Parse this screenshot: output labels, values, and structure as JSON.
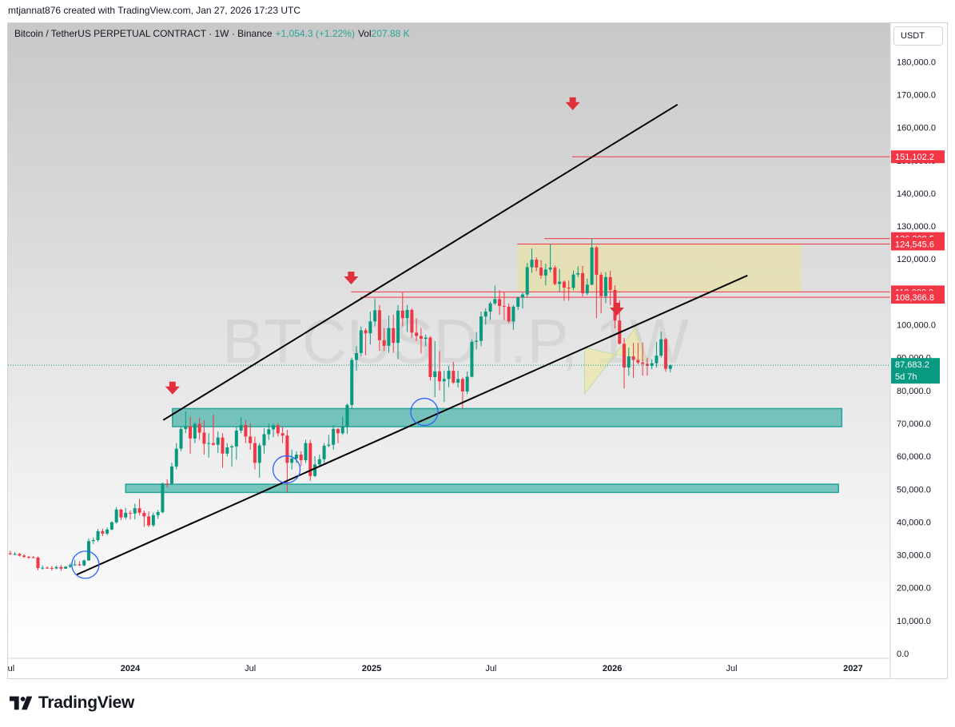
{
  "header": {
    "attribution": "mtjannat876 created with TradingView.com, Jan 27, 2026 17:23 UTC"
  },
  "legend": {
    "symbol": "Bitcoin / TetherUS PERPETUAL CONTRACT · 1W · Binance",
    "change": "+1,054.3 (+1.22%)",
    "vol_label": "Vol",
    "vol_value": "207.88 K"
  },
  "currency": "USDT",
  "watermark": "BTCUSDT.P, 1W",
  "footer": {
    "brand": "TradingView"
  },
  "colors": {
    "up": "#089981",
    "down": "#f23645",
    "zone_green": "#26a69a",
    "zone_yellow": "#e8e0a0",
    "level_red": "#f23645",
    "trend_black": "#000000",
    "arrow_red": "#e0303a",
    "circle_blue": "#2962ff",
    "current_price": "#089981"
  },
  "chart_data": {
    "type": "candlestick",
    "title": "Bitcoin / TetherUS PERPETUAL CONTRACT · 1W · Binance",
    "x_tick_labels": [
      "Jul",
      "2024",
      "Jul",
      "2025",
      "Jul",
      "2026",
      "Jul",
      "2027"
    ],
    "x_ticks": [
      "2023-07-01",
      "2024-01-01",
      "2024-07-01",
      "2025-01-01",
      "2025-07-01",
      "2026-01-01",
      "2026-07-01",
      "2027-01-01"
    ],
    "y_axis": {
      "min": 0,
      "max": 180000,
      "step": 10000,
      "tick_labels": [
        "0.0",
        "10,000.0",
        "20,000.0",
        "30,000.0",
        "40,000.0",
        "50,000.0",
        "60,000.0",
        "70,000.0",
        "80,000.0",
        "90,000.0",
        "100,000.0",
        "110,000.0",
        "120,000.0",
        "130,000.0",
        "140,000.0",
        "150,000.0",
        "160,000.0",
        "170,000.0",
        "180,000.0"
      ]
    },
    "current_price": {
      "value": 87683.2,
      "label": "87,683.2",
      "countdown": "5d 7h"
    },
    "price_labels": [
      {
        "value": 151102.2,
        "label": "151,102.2"
      },
      {
        "value": 126208.5,
        "label": "126,208.5"
      },
      {
        "value": 124545.6,
        "label": "124,545.6"
      },
      {
        "value": 110000.0,
        "label": "110,000.0"
      },
      {
        "value": 108366.8,
        "label": "108,366.8"
      }
    ],
    "horizontal_levels": [
      {
        "value": 151102.2,
        "start": "2025-11-01"
      },
      {
        "value": 126208.5,
        "start": "2025-09-20"
      },
      {
        "value": 124545.6,
        "start": "2025-08-10"
      },
      {
        "value": 110000.0,
        "start": "2024-12-01"
      },
      {
        "value": 108366.8,
        "start": "2024-12-15"
      }
    ],
    "zones": [
      {
        "kind": "support",
        "from": 69000,
        "to": 74500,
        "start": "2024-03-05",
        "end": "2026-12-15"
      },
      {
        "kind": "support",
        "from": 49000,
        "to": 51500,
        "start": "2023-12-25",
        "end": "2026-12-10"
      },
      {
        "kind": "resistance",
        "from": 110000,
        "to": 124500,
        "start": "2025-08-10",
        "end": "2026-10-15"
      }
    ],
    "wedge": {
      "points": [
        [
          "2025-11-20",
          79000
        ],
        [
          "2026-02-05",
          99000
        ],
        [
          "2026-02-22",
          89000
        ],
        [
          "2025-11-20",
          93000
        ]
      ]
    },
    "trendlines": [
      {
        "from": [
          "2024-02-20",
          71000
        ],
        "to": [
          "2026-04-10",
          167000
        ]
      },
      {
        "from": [
          "2023-10-12",
          24000
        ],
        "to": [
          "2026-07-25",
          115000
        ]
      }
    ],
    "arrows": [
      {
        "date": "2024-03-05",
        "value": 80000
      },
      {
        "date": "2024-12-01",
        "value": 113500
      },
      {
        "date": "2025-11-02",
        "value": 166500
      },
      {
        "date": "2026-01-08",
        "value": 104000
      }
    ],
    "circles": [
      {
        "date": "2023-10-25",
        "value": 27000
      },
      {
        "date": "2024-08-25",
        "value": 56000
      },
      {
        "date": "2025-03-22",
        "value": 73500
      }
    ],
    "candles": {
      "start_date": "2023-06-26",
      "ohlc": [
        [
          30200,
          31000,
          29800,
          30500
        ],
        [
          30500,
          31300,
          30000,
          30200
        ],
        [
          30200,
          30800,
          29900,
          30300
        ],
        [
          30300,
          30600,
          29500,
          29800
        ],
        [
          29800,
          30200,
          29000,
          29400
        ],
        [
          29400,
          29700,
          28800,
          29300
        ],
        [
          29300,
          29600,
          29000,
          29200
        ],
        [
          29200,
          29500,
          25300,
          26000
        ],
        [
          26000,
          26800,
          25500,
          26100
        ],
        [
          26100,
          26500,
          25800,
          26000
        ],
        [
          26000,
          26600,
          25200,
          25900
        ],
        [
          25900,
          26700,
          25600,
          26300
        ],
        [
          26300,
          26900,
          25100,
          25800
        ],
        [
          25800,
          26600,
          25700,
          26400
        ],
        [
          26400,
          27500,
          26000,
          26900
        ],
        [
          26900,
          28500,
          26600,
          27100
        ],
        [
          27100,
          28000,
          26700,
          26800
        ],
        [
          26800,
          28600,
          26500,
          28300
        ],
        [
          28300,
          35000,
          28200,
          34200
        ],
        [
          34200,
          35300,
          33300,
          34500
        ],
        [
          34500,
          37900,
          34000,
          37200
        ],
        [
          37200,
          38000,
          35700,
          36500
        ],
        [
          36500,
          38300,
          36000,
          37700
        ],
        [
          37700,
          40200,
          37500,
          39900
        ],
        [
          39900,
          44500,
          39500,
          43800
        ],
        [
          43800,
          44000,
          40500,
          41400
        ],
        [
          41400,
          44300,
          40800,
          42800
        ],
        [
          42800,
          43500,
          40800,
          42600
        ],
        [
          42600,
          45600,
          40800,
          44200
        ],
        [
          44200,
          47000,
          42000,
          42800
        ],
        [
          42800,
          43500,
          38500,
          41700
        ],
        [
          41700,
          43200,
          38500,
          39000
        ],
        [
          39000,
          42900,
          38500,
          42100
        ],
        [
          42100,
          43700,
          41000,
          43000
        ],
        [
          43000,
          52000,
          42600,
          51700
        ],
        [
          51700,
          53000,
          50500,
          51500
        ],
        [
          51700,
          58000,
          51300,
          56900
        ],
        [
          56900,
          64000,
          56000,
          62300
        ],
        [
          62300,
          69000,
          61500,
          68300
        ],
        [
          68300,
          73700,
          67000,
          69100
        ],
        [
          69100,
          72000,
          60800,
          65400
        ],
        [
          65400,
          70300,
          64000,
          69800
        ],
        [
          69800,
          71700,
          65000,
          67200
        ],
        [
          67200,
          71000,
          60500,
          63800
        ],
        [
          63800,
          67000,
          59600,
          64000
        ],
        [
          64000,
          72700,
          63200,
          63500
        ],
        [
          63500,
          67500,
          61000,
          65700
        ],
        [
          65700,
          67000,
          56500,
          60800
        ],
        [
          60800,
          64000,
          60000,
          62700
        ],
        [
          62700,
          63500,
          56800,
          63000
        ],
        [
          63000,
          69000,
          59000,
          67800
        ],
        [
          67800,
          71900,
          67000,
          69500
        ],
        [
          69500,
          71000,
          64000,
          66000
        ],
        [
          66000,
          70000,
          62000,
          64000
        ],
        [
          64000,
          66000,
          56000,
          58000
        ],
        [
          58000,
          64000,
          53500,
          63300
        ],
        [
          63300,
          68500,
          60800,
          66700
        ],
        [
          66700,
          70000,
          65000,
          68200
        ],
        [
          68200,
          70000,
          65800,
          69400
        ],
        [
          69400,
          70000,
          66000,
          67000
        ],
        [
          67000,
          69000,
          64000,
          66300
        ],
        [
          66300,
          68000,
          49000,
          58000
        ],
        [
          58000,
          62000,
          56000,
          59300
        ],
        [
          59300,
          61500,
          58000,
          60500
        ],
        [
          60500,
          61500,
          57000,
          58800
        ],
        [
          58800,
          65000,
          58000,
          64000
        ],
        [
          64000,
          65000,
          52500,
          54000
        ],
        [
          54000,
          60000,
          53700,
          57500
        ],
        [
          57500,
          60500,
          57000,
          59100
        ],
        [
          59100,
          64000,
          58000,
          63200
        ],
        [
          63200,
          66500,
          62700,
          63500
        ],
        [
          63500,
          69500,
          62000,
          68300
        ],
        [
          68300,
          68500,
          64000,
          67000
        ],
        [
          67000,
          72000,
          66500,
          69000
        ],
        [
          69000,
          76000,
          66800,
          75600
        ],
        [
          75600,
          90000,
          74500,
          89300
        ],
        [
          89300,
          93500,
          86000,
          91400
        ],
        [
          91400,
          99500,
          90500,
          98300
        ],
        [
          98300,
          98900,
          90700,
          97400
        ],
        [
          97400,
          104000,
          94000,
          101000
        ],
        [
          101000,
          108000,
          99500,
          104400
        ],
        [
          104400,
          106000,
          92000,
          95300
        ],
        [
          95300,
          99000,
          92000,
          93600
        ],
        [
          93600,
          102800,
          91500,
          99000
        ],
        [
          99000,
          103000,
          91500,
          94500
        ],
        [
          94500,
          106000,
          89500,
          104300
        ],
        [
          104300,
          109800,
          99500,
          102000
        ],
        [
          102000,
          106000,
          97800,
          104500
        ],
        [
          104500,
          105000,
          96000,
          97600
        ],
        [
          97600,
          102000,
          95000,
          96600
        ],
        [
          96600,
          99000,
          91200,
          95700
        ],
        [
          95700,
          97000,
          93500,
          96100
        ],
        [
          96100,
          96500,
          83000,
          84100
        ],
        [
          84100,
          95000,
          78000,
          85800
        ],
        [
          85800,
          92000,
          80000,
          82800
        ],
        [
          82800,
          86000,
          76500,
          83500
        ],
        [
          83500,
          87500,
          81000,
          86000
        ],
        [
          86000,
          88700,
          82000,
          82400
        ],
        [
          82400,
          86000,
          81000,
          83500
        ],
        [
          83500,
          84000,
          74500,
          79700
        ],
        [
          79700,
          85800,
          78900,
          84200
        ],
        [
          84200,
          95500,
          84000,
          94800
        ],
        [
          94800,
          97800,
          92500,
          95100
        ],
        [
          95100,
          104000,
          93500,
          102500
        ],
        [
          102500,
          105000,
          100000,
          104000
        ],
        [
          104000,
          107000,
          101500,
          106500
        ],
        [
          106500,
          111900,
          106000,
          107800
        ],
        [
          107800,
          110500,
          103000,
          105700
        ],
        [
          105700,
          110000,
          101500,
          105500
        ],
        [
          105500,
          106500,
          100500,
          101000
        ],
        [
          101000,
          106000,
          98500,
          105500
        ],
        [
          105500,
          108500,
          104500,
          108300
        ],
        [
          108300,
          109800,
          105000,
          109200
        ],
        [
          109200,
          118800,
          108300,
          117500
        ],
        [
          117500,
          123200,
          115800,
          119800
        ],
        [
          119800,
          120500,
          116300,
          117400
        ],
        [
          117400,
          119700,
          114000,
          115000
        ],
        [
          115000,
          118500,
          112000,
          116800
        ],
        [
          116800,
          124500,
          116000,
          117400
        ],
        [
          117400,
          118000,
          112000,
          112400
        ],
        [
          112400,
          117000,
          110000,
          113100
        ],
        [
          113100,
          113500,
          107300,
          111300
        ],
        [
          111300,
          113500,
          107300,
          111200
        ],
        [
          111200,
          116500,
          110500,
          115300
        ],
        [
          115300,
          117800,
          114500,
          115700
        ],
        [
          115700,
          117900,
          108600,
          109600
        ],
        [
          109600,
          114000,
          109000,
          112200
        ],
        [
          112200,
          126200,
          112000,
          123500
        ],
        [
          123500,
          124000,
          102000,
          115200
        ],
        [
          115200,
          116000,
          103500,
          108700
        ],
        [
          108700,
          116000,
          106600,
          114500
        ],
        [
          114500,
          116400,
          106000,
          110600
        ],
        [
          110600,
          112000,
          98900,
          101300
        ],
        [
          101300,
          107500,
          94000,
          94200
        ],
        [
          94200,
          96000,
          80600,
          87000
        ],
        [
          87000,
          93000,
          84500,
          90400
        ],
        [
          90400,
          94500,
          83800,
          89300
        ],
        [
          89300,
          94500,
          88000,
          88500
        ],
        [
          88500,
          94600,
          84500,
          88100
        ],
        [
          88100,
          90000,
          84500,
          87500
        ],
        [
          87500,
          89500,
          86500,
          88300
        ],
        [
          88300,
          94800,
          87000,
          90600
        ],
        [
          90600,
          97900,
          90000,
          95600
        ],
        [
          95600,
          96000,
          85700,
          86600
        ],
        [
          86600,
          87900,
          85500,
          87683
        ]
      ]
    }
  }
}
